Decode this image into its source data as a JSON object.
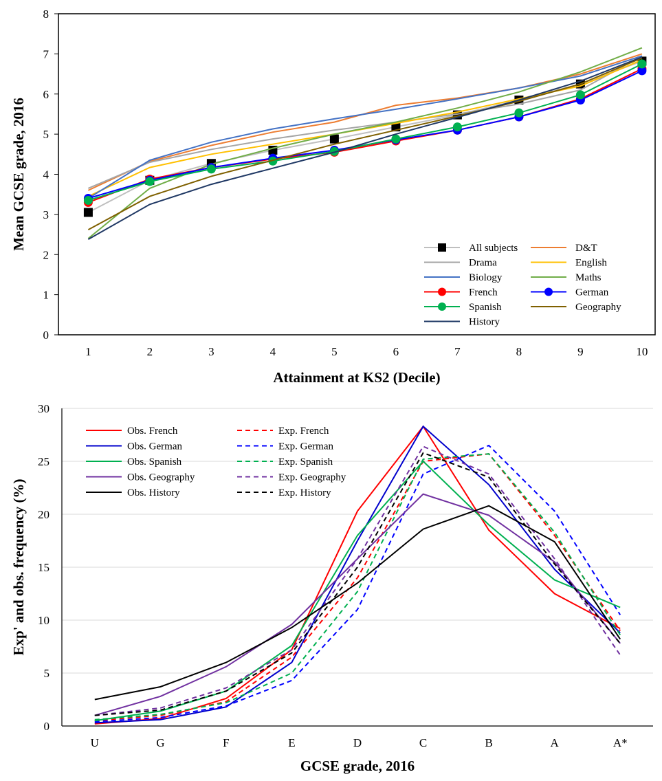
{
  "chart_data": [
    {
      "type": "line",
      "title": "",
      "xlabel": "Attainment  at KS2 (Decile)",
      "ylabel": "Mean  GCSE  grade, 2016",
      "x": [
        1,
        2,
        3,
        4,
        5,
        6,
        7,
        8,
        9,
        10
      ],
      "x_tick_labels": [
        "1",
        "2",
        "3",
        "4",
        "5",
        "6",
        "7",
        "8",
        "9",
        "10"
      ],
      "ylim": [
        0,
        8
      ],
      "y_ticks": [
        0,
        1,
        2,
        3,
        4,
        5,
        6,
        7,
        8
      ],
      "grid": false,
      "legend_position": "bottom-right",
      "series": [
        {
          "name": "All subjects",
          "color": "#bfbfbf",
          "dash": "solid",
          "marker": "square",
          "marker_color": "#000000",
          "values": [
            3.05,
            3.85,
            4.27,
            4.6,
            4.88,
            5.18,
            5.48,
            5.85,
            6.25,
            6.82
          ]
        },
        {
          "name": "D&T",
          "color": "#ed7d31",
          "dash": "solid",
          "marker": "none",
          "values": [
            3.6,
            4.32,
            4.72,
            5.05,
            5.3,
            5.72,
            5.9,
            6.15,
            6.5,
            7.0
          ]
        },
        {
          "name": "Drama",
          "color": "#a5a5a5",
          "dash": "solid",
          "marker": "none",
          "values": [
            3.65,
            4.3,
            4.62,
            4.88,
            5.1,
            5.3,
            5.5,
            5.75,
            6.1,
            6.95
          ]
        },
        {
          "name": "English",
          "color": "#ffc000",
          "dash": "solid",
          "marker": "none",
          "values": [
            3.45,
            4.17,
            4.5,
            4.75,
            5.0,
            5.27,
            5.55,
            5.88,
            6.2,
            6.85
          ]
        },
        {
          "name": "Biology",
          "color": "#4472c4",
          "dash": "solid",
          "marker": "none",
          "values": [
            3.4,
            4.35,
            4.8,
            5.13,
            5.38,
            5.62,
            5.88,
            6.15,
            6.45,
            6.95
          ]
        },
        {
          "name": "Maths",
          "color": "#70ad47",
          "dash": "solid",
          "marker": "none",
          "values": [
            2.4,
            3.65,
            4.25,
            4.65,
            5.0,
            5.3,
            5.65,
            6.05,
            6.55,
            7.15
          ]
        },
        {
          "name": "French",
          "color": "#ff0000",
          "dash": "solid",
          "marker": "circle",
          "marker_color": "#ff0000",
          "values": [
            3.3,
            3.88,
            4.17,
            4.38,
            4.55,
            4.83,
            5.1,
            5.43,
            5.88,
            6.63
          ]
        },
        {
          "name": "German",
          "color": "#0000ff",
          "dash": "solid",
          "marker": "circle",
          "marker_color": "#0000ff",
          "values": [
            3.4,
            3.85,
            4.17,
            4.4,
            4.6,
            4.86,
            5.1,
            5.43,
            5.85,
            6.58
          ]
        },
        {
          "name": "Spanish",
          "color": "#00b050",
          "dash": "solid",
          "marker": "circle",
          "marker_color": "#00b050",
          "values": [
            3.35,
            3.82,
            4.13,
            4.33,
            4.57,
            4.88,
            5.18,
            5.53,
            5.98,
            6.75
          ]
        },
        {
          "name": "Geography",
          "color": "#7f6000",
          "dash": "solid",
          "marker": "none",
          "values": [
            2.62,
            3.45,
            3.95,
            4.35,
            4.75,
            5.1,
            5.45,
            5.82,
            6.25,
            6.9
          ]
        },
        {
          "name": "History",
          "color": "#1f3864",
          "dash": "solid",
          "marker": "none",
          "values": [
            2.38,
            3.25,
            3.75,
            4.15,
            4.55,
            5.0,
            5.42,
            5.85,
            6.32,
            6.92
          ]
        }
      ]
    },
    {
      "type": "line",
      "title": "",
      "xlabel": "GCSE  grade, 2016",
      "ylabel": "Exp' and obs. frequency (%)",
      "categories": [
        "U",
        "G",
        "F",
        "E",
        "D",
        "C",
        "B",
        "A",
        "A*"
      ],
      "ylim": [
        0,
        30
      ],
      "y_ticks": [
        0,
        5,
        10,
        15,
        20,
        25,
        30
      ],
      "grid": true,
      "legend_position": "top-left",
      "series": [
        {
          "name": "Obs. French",
          "color": "#ff0000",
          "dash": "solid",
          "values": [
            0.2,
            0.7,
            2.6,
            7.2,
            20.3,
            28.3,
            18.5,
            12.5,
            9.2
          ]
        },
        {
          "name": "Exp. French",
          "color": "#ff0000",
          "dash": "dashed",
          "values": [
            0.5,
            1.0,
            2.3,
            6.5,
            14.0,
            25.0,
            25.7,
            18.0,
            9.0
          ]
        },
        {
          "name": "Obs. German",
          "color": "#0000cc",
          "dash": "solid",
          "values": [
            0.3,
            0.6,
            1.8,
            6.0,
            17.5,
            28.3,
            22.8,
            14.8,
            8.8
          ]
        },
        {
          "name": "Exp. German",
          "color": "#0000ff",
          "dash": "dashed",
          "values": [
            0.4,
            0.8,
            1.9,
            4.3,
            11.0,
            23.8,
            26.5,
            20.3,
            10.5
          ]
        },
        {
          "name": "Obs.  Spanish",
          "color": "#00b050",
          "dash": "solid",
          "values": [
            0.5,
            1.4,
            3.3,
            7.6,
            18.0,
            25.0,
            19.0,
            13.8,
            11.2
          ]
        },
        {
          "name": "Exp. Spanish",
          "color": "#00b050",
          "dash": "dashed",
          "values": [
            0.6,
            1.1,
            2.2,
            5.0,
            12.7,
            25.2,
            25.7,
            18.3,
            8.6
          ]
        },
        {
          "name": "Obs. Geography",
          "color": "#7030a0",
          "dash": "solid",
          "values": [
            1.0,
            2.8,
            5.6,
            9.6,
            15.8,
            21.9,
            19.9,
            15.5,
            7.8
          ]
        },
        {
          "name": "Exp. Geography",
          "color": "#7030a0",
          "dash": "dashed",
          "values": [
            1.0,
            1.7,
            3.6,
            7.2,
            15.8,
            26.4,
            23.8,
            15.8,
            6.7
          ]
        },
        {
          "name": "Obs. History",
          "color": "#000000",
          "dash": "solid",
          "values": [
            2.5,
            3.7,
            6.0,
            9.3,
            13.5,
            18.6,
            20.8,
            17.4,
            8.2
          ]
        },
        {
          "name": "Exp. History",
          "color": "#000000",
          "dash": "dashed",
          "values": [
            1.0,
            1.5,
            3.3,
            6.9,
            15.0,
            25.8,
            23.5,
            15.3,
            7.8
          ]
        }
      ]
    }
  ]
}
